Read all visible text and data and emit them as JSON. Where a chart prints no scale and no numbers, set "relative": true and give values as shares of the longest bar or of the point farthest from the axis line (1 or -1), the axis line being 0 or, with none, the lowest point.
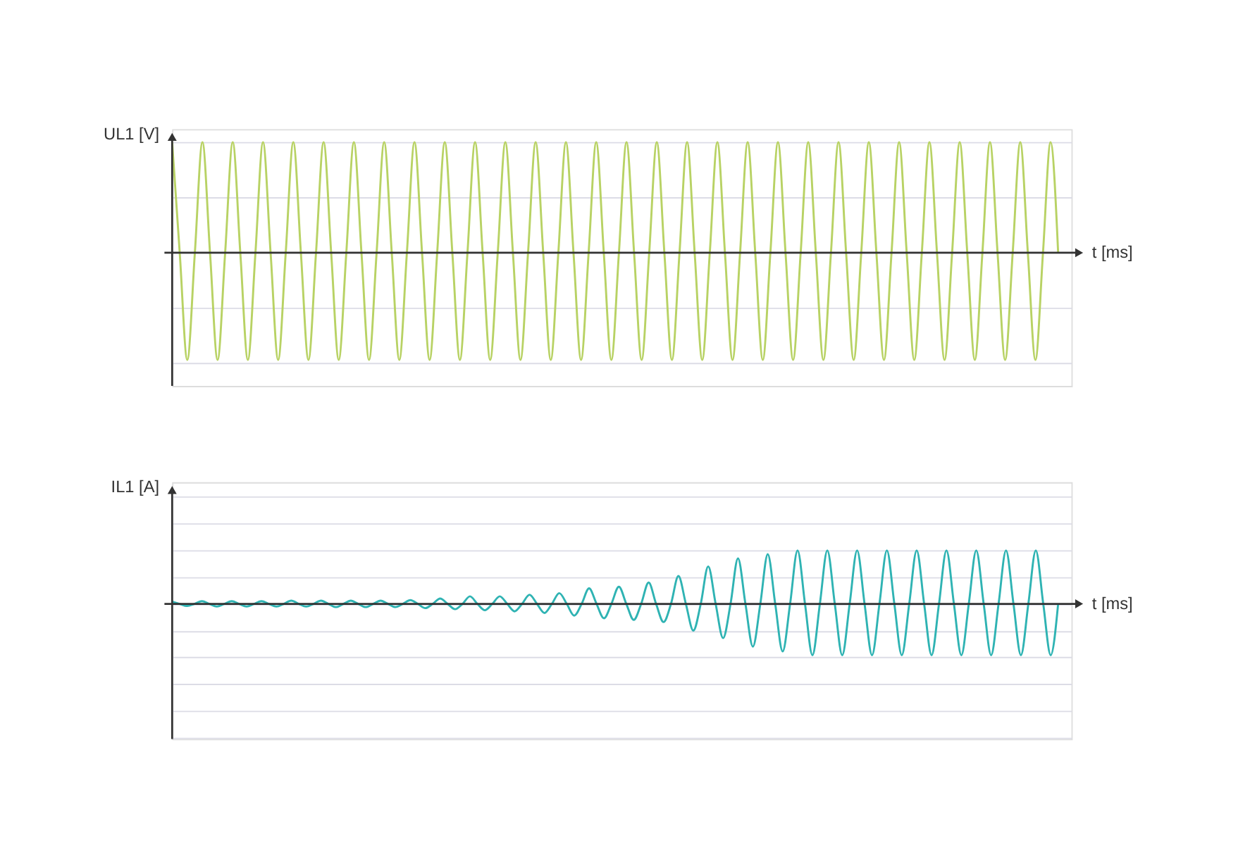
{
  "chart_data": [
    {
      "type": "line",
      "relative": true,
      "ylabel": "UL1 [V]",
      "xlabel": "t [ms]",
      "grid": "y",
      "categories": [
        null,
        null,
        null,
        null,
        null,
        null,
        null,
        null,
        null,
        null,
        null,
        null,
        null,
        null,
        null,
        null,
        null,
        null,
        null,
        null,
        null,
        null,
        null,
        null,
        null,
        null,
        null,
        null,
        null,
        null,
        null,
        null,
        null,
        null,
        null,
        null,
        null,
        null,
        null,
        null,
        null,
        null,
        null,
        null,
        null,
        null,
        null,
        null,
        null,
        null,
        null,
        null,
        null,
        null,
        null,
        null,
        null,
        null,
        null,
        null,
        null,
        null,
        null,
        null,
        null,
        null,
        null,
        null,
        null,
        null,
        null,
        null,
        null,
        null,
        null,
        null,
        null,
        null,
        null,
        null,
        null,
        null,
        null,
        null,
        null,
        null,
        null,
        null,
        null,
        null,
        null,
        null,
        null,
        null,
        null,
        null,
        null,
        null,
        null,
        null,
        null,
        null,
        null,
        null,
        null,
        null,
        null,
        null,
        null,
        null,
        null,
        null,
        null,
        null,
        null,
        null,
        null,
        null
      ],
      "series": [
        {
          "color": "#b8d264",
          "values": [
            1,
            0,
            -0.97,
            0,
            1,
            0,
            -0.97,
            0,
            1,
            0,
            -0.97,
            0,
            1,
            0,
            -0.97,
            0,
            1,
            0,
            -0.97,
            0,
            1,
            0,
            -0.97,
            0,
            1,
            0,
            -0.97,
            0,
            1,
            0,
            -0.97,
            0,
            1,
            0,
            -0.97,
            0,
            1,
            0,
            -0.97,
            0,
            1,
            0,
            -0.97,
            0,
            1,
            0,
            -0.97,
            0,
            1,
            0,
            -0.97,
            0,
            1,
            0,
            -0.97,
            0,
            1,
            0,
            -0.97,
            0,
            1,
            0,
            -0.97,
            0,
            1,
            0,
            -0.97,
            0,
            1,
            0,
            -0.97,
            0,
            1,
            0,
            -0.97,
            0,
            1,
            0,
            -0.97,
            0,
            1,
            0,
            -0.97,
            0,
            1,
            0,
            -0.97,
            0,
            1,
            0,
            -0.97,
            0,
            1,
            0,
            -0.97,
            0,
            1,
            0,
            -0.97,
            0,
            1,
            0,
            -0.97,
            0,
            1,
            0,
            -0.97,
            0,
            1,
            0,
            -0.97,
            0,
            1,
            0,
            -0.97,
            0,
            1,
            0
          ]
        }
      ]
    },
    {
      "type": "line",
      "relative": true,
      "ylabel": "IL1 [A]",
      "xlabel": "t [ms]",
      "grid": "y",
      "categories": [
        null,
        null,
        null,
        null,
        null,
        null,
        null,
        null,
        null,
        null,
        null,
        null,
        null,
        null,
        null,
        null,
        null,
        null,
        null,
        null,
        null,
        null,
        null,
        null,
        null,
        null,
        null,
        null,
        null,
        null,
        null,
        null,
        null,
        null,
        null,
        null,
        null,
        null,
        null,
        null,
        null,
        null,
        null,
        null,
        null,
        null,
        null,
        null,
        null,
        null,
        null,
        null,
        null,
        null,
        null,
        null,
        null,
        null,
        null,
        null,
        null,
        null,
        null,
        null,
        null,
        null,
        null,
        null,
        null,
        null,
        null,
        null,
        null,
        null,
        null,
        null,
        null,
        null,
        null,
        null,
        null,
        null,
        null,
        null,
        null,
        null,
        null,
        null,
        null,
        null,
        null,
        null,
        null,
        null,
        null,
        null,
        null,
        null,
        null,
        null,
        null,
        null,
        null,
        null,
        null,
        null,
        null,
        null,
        null,
        null,
        null,
        null,
        null,
        null,
        null,
        null,
        null,
        null,
        null,
        null
      ],
      "series": [
        {
          "color": "#2fb3b3",
          "values": [
            0.04,
            0,
            -0.04,
            0,
            0.05,
            0,
            -0.05,
            0,
            0.05,
            0,
            -0.05,
            0,
            0.05,
            0,
            -0.05,
            0,
            0.06,
            0,
            -0.05,
            0,
            0.06,
            0,
            -0.06,
            0,
            0.06,
            0,
            -0.06,
            0,
            0.06,
            0,
            -0.06,
            0,
            0.07,
            0,
            -0.08,
            0,
            0.1,
            0,
            -0.1,
            0,
            0.14,
            0,
            -0.12,
            0,
            0.14,
            0,
            -0.14,
            0,
            0.17,
            0,
            -0.17,
            0,
            0.2,
            0,
            -0.22,
            0,
            0.29,
            0,
            -0.27,
            0,
            0.32,
            0,
            -0.3,
            0,
            0.4,
            0,
            -0.34,
            0,
            0.52,
            0,
            -0.5,
            0,
            0.7,
            0,
            -0.64,
            0,
            0.85,
            0,
            -0.8,
            0,
            0.93,
            0,
            -0.89,
            0,
            1,
            0,
            -0.96,
            0,
            1,
            0,
            -0.96,
            0,
            1,
            0,
            -0.96,
            0,
            1,
            0,
            -0.96,
            0,
            1,
            0,
            -0.96,
            0,
            1,
            0,
            -0.96,
            0,
            1,
            0,
            -0.96,
            0,
            1,
            0,
            -0.96,
            0,
            1,
            0,
            -0.96,
            0
          ]
        }
      ]
    }
  ]
}
